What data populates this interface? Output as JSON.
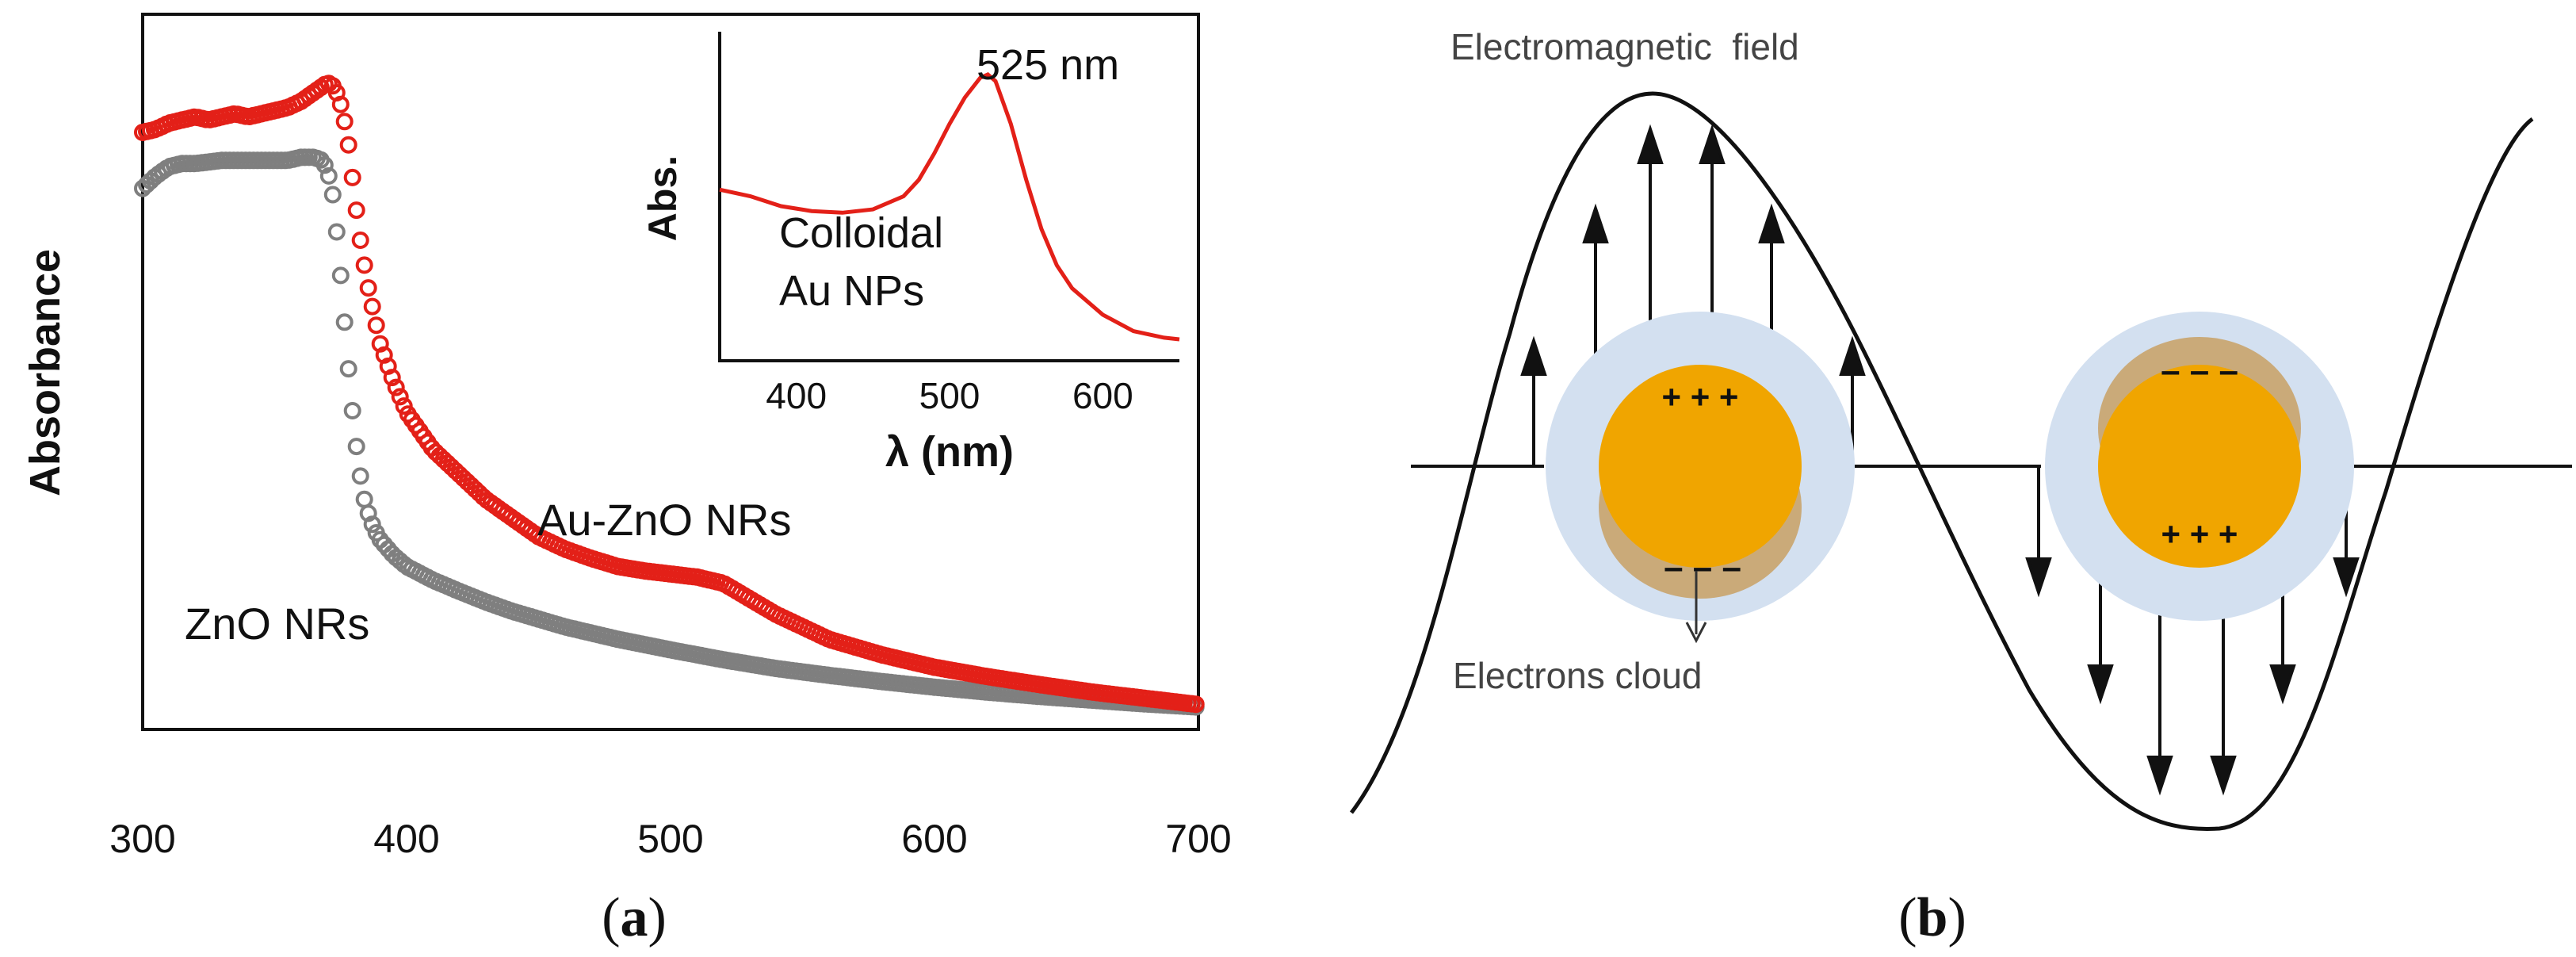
{
  "chart_data": {
    "type": "scatter",
    "title": "",
    "xlabel": "",
    "ylabel": "Absorbance",
    "xlim": [
      300,
      700
    ],
    "ylim": [
      0,
      1.15
    ],
    "xticks": [
      "300",
      "400",
      "500",
      "600",
      "700"
    ],
    "panel_label": "a",
    "series": [
      {
        "name": "Au-ZnO NRs",
        "color": "#e32018",
        "x": [
          300,
          305,
          310,
          315,
          320,
          325,
          330,
          335,
          340,
          345,
          350,
          355,
          360,
          365,
          370,
          372,
          374,
          376,
          378,
          380,
          382,
          385,
          388,
          390,
          395,
          400,
          410,
          420,
          430,
          440,
          450,
          460,
          470,
          480,
          490,
          500,
          510,
          520,
          530,
          540,
          550,
          560,
          580,
          600,
          620,
          640,
          660,
          680,
          700
        ],
        "y": [
          0.96,
          0.965,
          0.975,
          0.98,
          0.985,
          0.98,
          0.985,
          0.99,
          0.985,
          0.99,
          0.995,
          1.0,
          1.01,
          1.025,
          1.04,
          1.035,
          1.02,
          0.99,
          0.94,
          0.87,
          0.8,
          0.72,
          0.66,
          0.62,
          0.56,
          0.51,
          0.45,
          0.41,
          0.37,
          0.34,
          0.31,
          0.29,
          0.275,
          0.262,
          0.255,
          0.25,
          0.245,
          0.235,
          0.21,
          0.185,
          0.165,
          0.145,
          0.12,
          0.1,
          0.085,
          0.072,
          0.06,
          0.05,
          0.04
        ]
      },
      {
        "name": "ZnO NRs",
        "color": "#7f7f7f",
        "x": [
          300,
          305,
          310,
          315,
          320,
          330,
          340,
          350,
          355,
          360,
          365,
          368,
          370,
          372,
          374,
          376,
          378,
          380,
          382,
          384,
          386,
          388,
          390,
          395,
          400,
          410,
          420,
          430,
          440,
          460,
          480,
          500,
          520,
          540,
          560,
          580,
          600,
          620,
          640,
          660,
          680,
          700
        ],
        "y": [
          0.87,
          0.89,
          0.905,
          0.91,
          0.91,
          0.915,
          0.915,
          0.915,
          0.915,
          0.92,
          0.92,
          0.915,
          0.9,
          0.86,
          0.78,
          0.68,
          0.58,
          0.49,
          0.42,
          0.37,
          0.34,
          0.32,
          0.305,
          0.28,
          0.262,
          0.24,
          0.222,
          0.205,
          0.19,
          0.165,
          0.145,
          0.128,
          0.112,
          0.098,
          0.087,
          0.077,
          0.068,
          0.06,
          0.053,
          0.047,
          0.041,
          0.036
        ]
      }
    ],
    "annotations": [
      "Au-ZnO NRs",
      "ZnO NRs"
    ],
    "inset": {
      "type": "line",
      "ylabel": "Abs.",
      "xlabel": "λ (nm)",
      "xlim": [
        350,
        650
      ],
      "ylim": [
        0,
        1
      ],
      "xticks": [
        "400",
        "500",
        "600"
      ],
      "peak_label": "525 nm",
      "note_line1": "Colloidal",
      "note_line2": "Au NPs",
      "color": "#e32018",
      "x": [
        350,
        370,
        390,
        410,
        430,
        450,
        470,
        480,
        490,
        500,
        510,
        520,
        525,
        530,
        540,
        550,
        560,
        570,
        580,
        600,
        620,
        640,
        650
      ],
      "y": [
        0.52,
        0.5,
        0.47,
        0.455,
        0.45,
        0.46,
        0.5,
        0.55,
        0.63,
        0.72,
        0.8,
        0.86,
        0.87,
        0.85,
        0.72,
        0.55,
        0.4,
        0.29,
        0.22,
        0.14,
        0.09,
        0.07,
        0.065
      ]
    }
  },
  "diagram": {
    "panel_label": "b",
    "field_label": "Electromagnetic  field",
    "cloud_label": "Electrons cloud",
    "plus_signs": "+ + +",
    "minus_signs": "– – –",
    "colors": {
      "particle": "#f0a500",
      "cloud": "#c8a064",
      "shell": "#d3e0f0",
      "ink": "#1a1a1a"
    }
  }
}
